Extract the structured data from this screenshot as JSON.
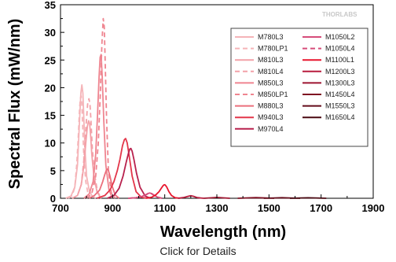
{
  "link_text": "Click for Details",
  "brand": "THORLABS",
  "chart_data": {
    "type": "line",
    "xlabel": "Wavelength (nm)",
    "ylabel": "Spectral Flux (mW/nm)",
    "xlim": [
      700,
      1900
    ],
    "ylim": [
      0,
      35
    ],
    "xticks": [
      700,
      900,
      1100,
      1300,
      1500,
      1700,
      1900
    ],
    "yticks": [
      0,
      5,
      10,
      15,
      20,
      25,
      30,
      35
    ],
    "grid": false,
    "legend_position": "top-right",
    "series": [
      {
        "name": "M780L3",
        "color": "#f5b4b8",
        "dash": false,
        "x": [
          720,
          740,
          755,
          765,
          772,
          778,
          782,
          786,
          790,
          795,
          800,
          810,
          820,
          835
        ],
        "y": [
          0,
          0.4,
          2,
          6,
          13,
          19,
          20.5,
          19,
          14,
          8,
          4,
          1.5,
          0.5,
          0
        ]
      },
      {
        "name": "M780LP1",
        "color": "#f5b4b8",
        "dash": true,
        "x": [
          730,
          745,
          755,
          762,
          768,
          773,
          776,
          779,
          782,
          786,
          790,
          797,
          805,
          815
        ],
        "y": [
          0,
          0.5,
          2,
          6,
          11,
          16,
          18,
          18.5,
          17,
          12,
          7,
          3,
          1,
          0
        ]
      },
      {
        "name": "M810L3",
        "color": "#f3a1a8",
        "dash": false,
        "x": [
          745,
          765,
          780,
          790,
          797,
          803,
          808,
          812,
          816,
          820,
          828,
          840,
          855
        ],
        "y": [
          0,
          0.5,
          2.5,
          6,
          10,
          13,
          14,
          13.5,
          11,
          8,
          4,
          1.2,
          0
        ]
      },
      {
        "name": "M810L4",
        "color": "#f3a1a8",
        "dash": true,
        "x": [
          745,
          765,
          780,
          790,
          798,
          804,
          809,
          813,
          817,
          822,
          830,
          842,
          857
        ],
        "y": [
          0,
          0.5,
          2.5,
          7,
          13,
          17,
          18,
          17,
          14,
          9,
          4.5,
          1.2,
          0
        ]
      },
      {
        "name": "M850L3",
        "color": "#ef8590",
        "dash": false,
        "x": [
          790,
          810,
          825,
          835,
          842,
          848,
          852,
          856,
          860,
          866,
          874,
          886,
          900
        ],
        "y": [
          0,
          0.8,
          3,
          8,
          15,
          22,
          25.5,
          26,
          22,
          14,
          6,
          1.5,
          0
        ]
      },
      {
        "name": "M850LP1",
        "color": "#ef8590",
        "dash": true,
        "x": [
          800,
          820,
          835,
          845,
          853,
          859,
          864,
          868,
          872,
          877,
          884,
          895,
          910
        ],
        "y": [
          0,
          0.8,
          4,
          10,
          19,
          28,
          32.5,
          31,
          24,
          14,
          5,
          1,
          0
        ]
      },
      {
        "name": "M880L3",
        "color": "#eb6f7c",
        "dash": false,
        "x": [
          810,
          830,
          850,
          862,
          870,
          876,
          880,
          884,
          890,
          898,
          910,
          925
        ],
        "y": [
          0,
          0.5,
          1.5,
          3,
          4.3,
          5.1,
          5.3,
          5,
          4,
          2.2,
          0.6,
          0
        ]
      },
      {
        "name": "M940L3",
        "color": "#e3364a",
        "dash": false,
        "x": [
          840,
          870,
          890,
          905,
          918,
          928,
          938,
          945,
          950,
          956,
          964,
          975,
          990,
          1010,
          1030
        ],
        "y": [
          0,
          0.5,
          1.5,
          3,
          5,
          7,
          9.5,
          10.6,
          10.8,
          10,
          7.5,
          4,
          1.2,
          0.2,
          0
        ]
      },
      {
        "name": "M970L4",
        "color": "#b8214d",
        "dash": false,
        "x": [
          880,
          905,
          925,
          940,
          952,
          960,
          966,
          970,
          975,
          982,
          992,
          1005,
          1025,
          1045
        ],
        "y": [
          0,
          0.5,
          1.8,
          4,
          6.5,
          8,
          8.9,
          9,
          8.5,
          7,
          4.5,
          2,
          0.4,
          0
        ]
      },
      {
        "name": "M1050L2",
        "color": "#d64d7a",
        "dash": false,
        "x": [
          960,
          990,
          1010,
          1025,
          1035,
          1042,
          1050,
          1058,
          1070,
          1090
        ],
        "y": [
          0,
          0.1,
          0.3,
          0.6,
          0.85,
          0.95,
          0.85,
          0.6,
          0.25,
          0
        ]
      },
      {
        "name": "M1050L4",
        "color": "#d64d7a",
        "dash": true,
        "x": [
          960,
          990,
          1010,
          1025,
          1035,
          1043,
          1050,
          1058,
          1070,
          1090
        ],
        "y": [
          0,
          0.1,
          0.3,
          0.55,
          0.8,
          0.9,
          0.8,
          0.55,
          0.2,
          0
        ]
      },
      {
        "name": "M1100L1",
        "color": "#e8162d",
        "dash": false,
        "x": [
          1030,
          1050,
          1065,
          1078,
          1088,
          1094,
          1098,
          1102,
          1108,
          1116,
          1126,
          1140,
          1160
        ],
        "y": [
          0,
          0.2,
          0.6,
          1.2,
          1.9,
          2.3,
          2.45,
          2.4,
          2,
          1.2,
          0.5,
          0.1,
          0
        ]
      },
      {
        "name": "M1200L3",
        "color": "#b81c3d",
        "dash": false,
        "x": [
          1150,
          1175,
          1190,
          1200,
          1210,
          1225,
          1250
        ],
        "y": [
          0,
          0.15,
          0.35,
          0.45,
          0.35,
          0.12,
          0
        ]
      },
      {
        "name": "M1300L3",
        "color": "#9e1530",
        "dash": false,
        "x": [
          1250,
          1280,
          1300,
          1320,
          1350
        ],
        "y": [
          0,
          0.08,
          0.15,
          0.08,
          0
        ]
      },
      {
        "name": "M1450L4",
        "color": "#7f0f22",
        "dash": false,
        "x": [
          1380,
          1420,
          1450,
          1480,
          1520
        ],
        "y": [
          0,
          0.07,
          0.12,
          0.07,
          0
        ]
      },
      {
        "name": "M1550L3",
        "color": "#640b1a",
        "dash": false,
        "x": [
          1480,
          1520,
          1550,
          1580,
          1620
        ],
        "y": [
          0,
          0.06,
          0.1,
          0.06,
          0
        ]
      },
      {
        "name": "M1650L4",
        "color": "#4a0811",
        "dash": false,
        "x": [
          1580,
          1620,
          1650,
          1680,
          1720
        ],
        "y": [
          0,
          0.05,
          0.08,
          0.05,
          0
        ]
      }
    ]
  }
}
